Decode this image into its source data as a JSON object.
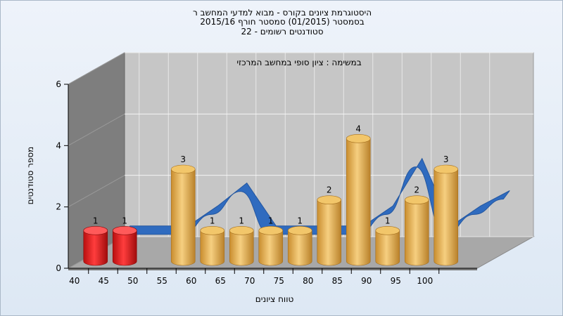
{
  "header": {
    "line1": "היסטוגרמת ציונים בקורס - מבוא למדעי המחשב ר",
    "line2": "בסמסטר  (01/2015)  סמסטר חורף 2015/16",
    "line3": "סטודנטים רשומים - 22"
  },
  "chart_data": {
    "type": "bar",
    "title": "היסטוגרמת ציונים בקורס - מבוא למדעי המחשב ר",
    "subtitle": "במשימה : ציון סופי במחשב המרכזי",
    "xlabel": "טווח ציונים",
    "ylabel": "מספר סטודנטים",
    "x_ticks": [
      "40",
      "45",
      "50",
      "55",
      "60",
      "65",
      "70",
      "75",
      "80",
      "85",
      "90",
      "95",
      "100"
    ],
    "ylim": [
      0,
      6
    ],
    "y_ticks": [
      0,
      2,
      4,
      6
    ],
    "grid": true,
    "bars": [
      {
        "x": 40,
        "value": 1,
        "label": "1",
        "color": "#d81818"
      },
      {
        "x": 45,
        "value": 1,
        "label": "1",
        "color": "#d81818"
      },
      {
        "x": 55,
        "value": 3,
        "label": "3",
        "color": "#e8a840"
      },
      {
        "x": 60,
        "value": 1,
        "label": "1",
        "color": "#e8a840"
      },
      {
        "x": 65,
        "value": 1,
        "label": "1",
        "color": "#e8a840"
      },
      {
        "x": 70,
        "value": 1,
        "label": "1",
        "color": "#e8a840"
      },
      {
        "x": 75,
        "value": 1,
        "label": "1",
        "color": "#e8a840"
      },
      {
        "x": 80,
        "value": 2,
        "label": "2",
        "color": "#e8a840"
      },
      {
        "x": 85,
        "value": 4,
        "label": "4",
        "color": "#e8a840"
      },
      {
        "x": 90,
        "value": 1,
        "label": "1",
        "color": "#e8a840"
      },
      {
        "x": 95,
        "value": 2,
        "label": "2",
        "color": "#e8a840"
      },
      {
        "x": 100,
        "value": 3,
        "label": "3",
        "color": "#e8a840"
      }
    ],
    "line_series": {
      "color": "#2f6bbf",
      "x": [
        40,
        45,
        50,
        55,
        60,
        65,
        70,
        75,
        80,
        85,
        90,
        95,
        100,
        105
      ],
      "values": [
        0.35,
        0.35,
        0.35,
        1.0,
        1.75,
        0.35,
        0.35,
        0.35,
        0.35,
        1.0,
        2.55,
        0.35,
        1.0,
        1.5
      ]
    }
  },
  "colors": {
    "back_wall": "#c6c6c6",
    "left_wall": "#7e7e7e",
    "floor": "#a8a8a8",
    "grid": "#ffffff"
  }
}
